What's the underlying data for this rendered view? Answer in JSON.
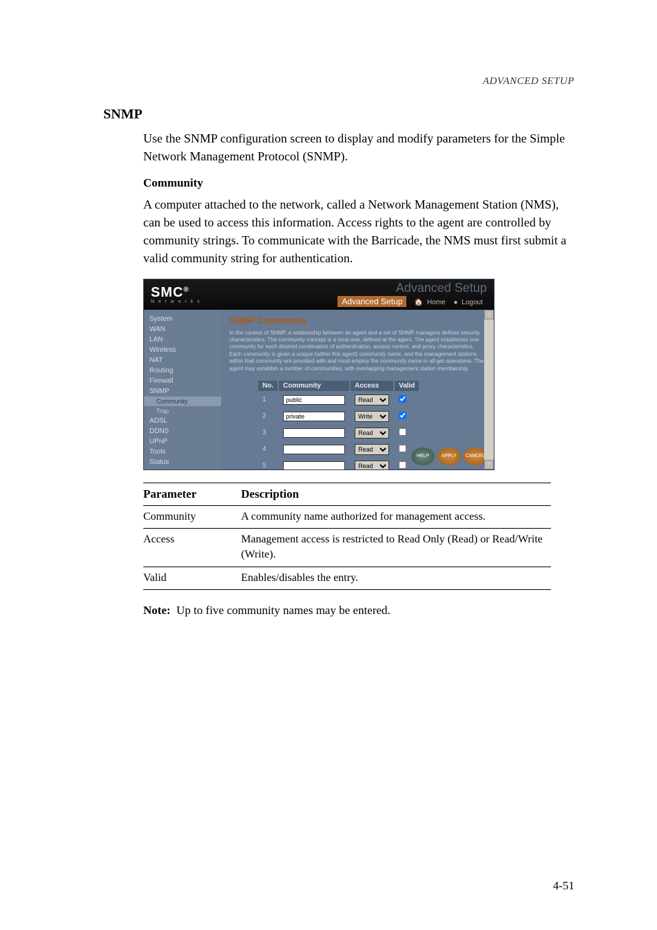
{
  "header": "ADVANCED SETUP",
  "section_title": "SNMP",
  "intro": "Use the SNMP configuration screen to display and modify parameters for the Simple Network Management Protocol (SNMP).",
  "subheading": "Community",
  "community_paragraph": "A computer attached to the network, called a Network Management Station (NMS), can be used to access this information. Access rights to the agent are controlled by community strings. To communicate with the Barricade, the NMS must first submit a valid community string for authentication.",
  "screenshot": {
    "logo": "SMC",
    "logo_sub": "N e t w o r k s",
    "advanced_label": "Advanced Setup",
    "advanced_main": "Advanced Setup",
    "home_link": "Home",
    "logout_link": "Logout",
    "sidebar": {
      "items": [
        "System",
        "WAN",
        "LAN",
        "Wireless",
        "NAT",
        "Routing",
        "Firewall",
        "SNMP"
      ],
      "sub_items": [
        "Community",
        "Trap"
      ],
      "items_after": [
        "ADSL",
        "DDNS",
        "UPnP",
        "Tools",
        "Status"
      ]
    },
    "content_title": "SNMP Community",
    "description": "In the context of SNMP, a relationship between an agent and a set of SNMP managers defines security characteristics. The community concept is a local one, defined at the agent. The agent establishes one community for each desired combination of authentication, access control, and proxy characteristics. Each community is given a unique (within this agent) community name, and the management stations within that community are provided with and must employ the community name in all get operations. The agent may establish a number of communities, with overlapping management station membership.",
    "table": {
      "headers": [
        "No.",
        "Community",
        "Access",
        "Valid"
      ],
      "rows": [
        {
          "no": "1",
          "community": "public",
          "access": "Read",
          "valid": true
        },
        {
          "no": "2",
          "community": "private",
          "access": "Write",
          "valid": true
        },
        {
          "no": "3",
          "community": "",
          "access": "Read",
          "valid": false
        },
        {
          "no": "4",
          "community": "",
          "access": "Read",
          "valid": false
        },
        {
          "no": "5",
          "community": "",
          "access": "Read",
          "valid": false
        }
      ]
    },
    "buttons": [
      "HELP",
      "APPLY",
      "CANCEL"
    ]
  },
  "param_table": {
    "headers": [
      "Parameter",
      "Description"
    ],
    "rows": [
      {
        "param": "Community",
        "desc": "A community name authorized for management access."
      },
      {
        "param": "Access",
        "desc": "Management access is restricted to Read Only (Read) or Read/Write (Write)."
      },
      {
        "param": "Valid",
        "desc": "Enables/disables the entry."
      }
    ]
  },
  "note_label": "Note:",
  "note_text": "Up to five community names may be entered.",
  "page_number": "4-51"
}
